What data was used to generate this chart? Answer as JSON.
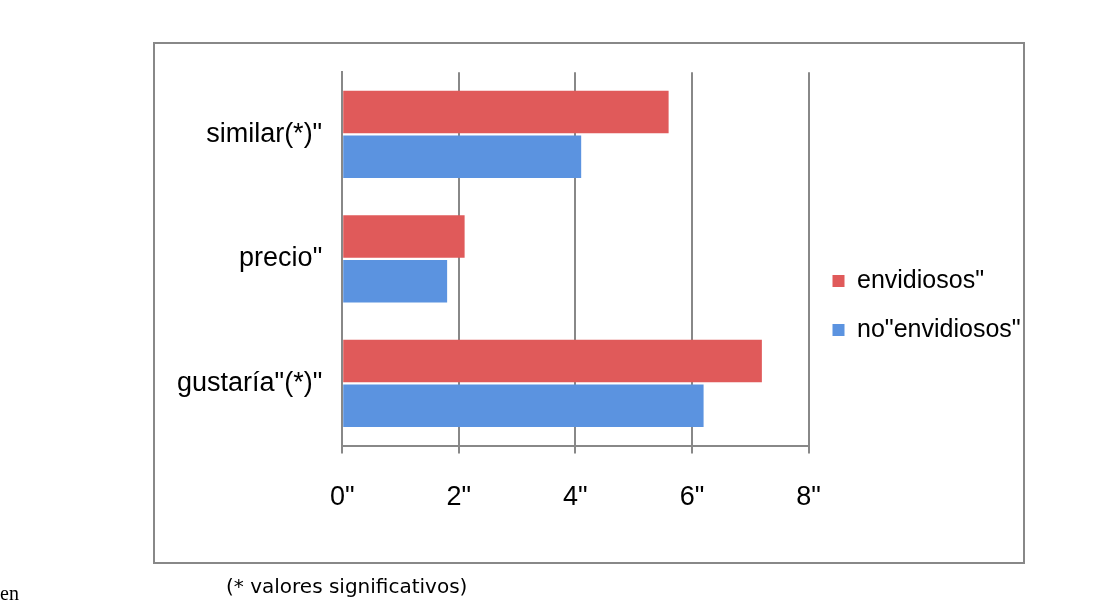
{
  "chart_data": {
    "type": "bar",
    "orientation": "horizontal",
    "categories": [
      "similar(*)\"",
      "precio\"",
      "gustaría\"(*)\""
    ],
    "series": [
      {
        "name": "envidiosos\"",
        "color": "#e05a5a",
        "values": [
          5.6,
          2.1,
          7.2
        ]
      },
      {
        "name": "no\"envidiosos\"",
        "color": "#5b93e0",
        "values": [
          4.1,
          1.8,
          6.2
        ]
      }
    ],
    "xlim": [
      0,
      8
    ],
    "xticks": [
      {
        "value": 0,
        "label": "0\""
      },
      {
        "value": 2,
        "label": "2\""
      },
      {
        "value": 4,
        "label": "4\""
      },
      {
        "value": 6,
        "label": "6\""
      },
      {
        "value": 8,
        "label": "8\""
      }
    ],
    "grid": "x",
    "legend": "right",
    "annotations": [
      "(* valores significativos)",
      "en"
    ]
  }
}
